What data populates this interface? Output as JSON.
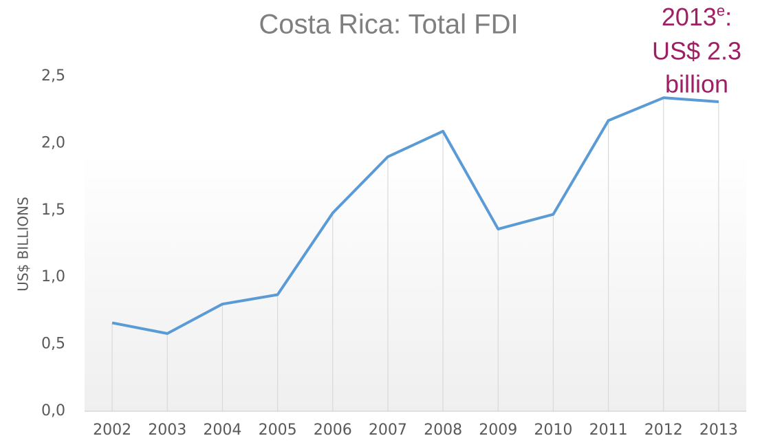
{
  "chart_data": {
    "type": "line",
    "title": "Costa Rica: Total FDI",
    "y_axis_label": "US$ BILLIONS",
    "annotation": {
      "year": "2013",
      "superscript": "e",
      "colon": ":",
      "line2": "US$ 2.3",
      "line3": "billion"
    },
    "categories": [
      "2002",
      "2003",
      "2004",
      "2005",
      "2006",
      "2007",
      "2008",
      "2009",
      "2010",
      "2011",
      "2012",
      "2013"
    ],
    "series": [
      {
        "name": "Total FDI",
        "color": "#5b9bd5",
        "values": [
          0.66,
          0.58,
          0.8,
          0.87,
          1.48,
          1.9,
          2.09,
          1.36,
          1.47,
          2.17,
          2.34,
          2.31
        ]
      }
    ],
    "ylim": [
      0,
      2.5
    ],
    "yticks": [
      {
        "value": 0,
        "label": "0,0"
      },
      {
        "value": 0.5,
        "label": "0,5"
      },
      {
        "value": 1,
        "label": "1,0"
      },
      {
        "value": 1.5,
        "label": "1,5"
      },
      {
        "value": 2,
        "label": "2,0"
      },
      {
        "value": 2.5,
        "label": "2,5"
      }
    ],
    "drop_lines": true
  }
}
